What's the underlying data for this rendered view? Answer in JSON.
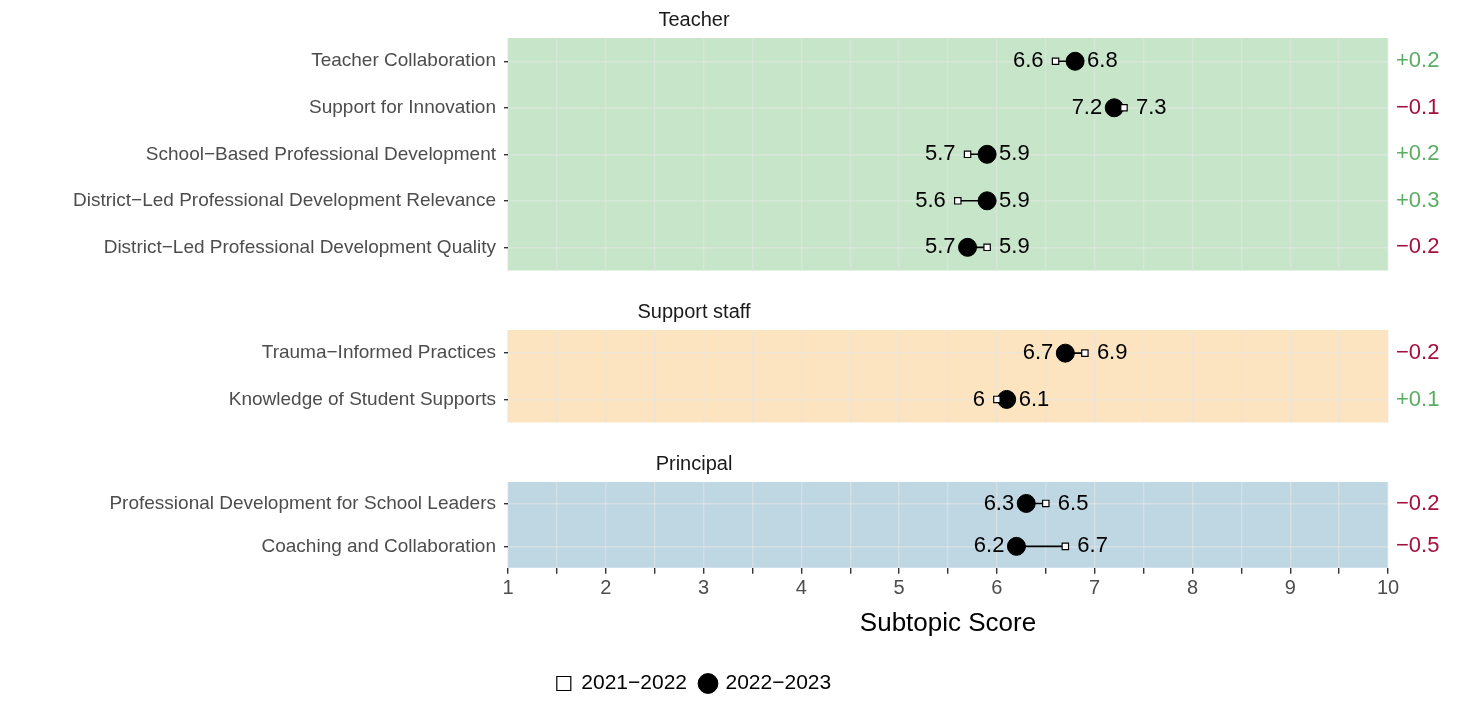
{
  "chart_data": [
    {
      "type": "scatter",
      "title": "Teacher",
      "orientation": "horizontal",
      "categories": [
        "Teacher Collaboration",
        "Support for Innovation",
        "School−Based Professional Development",
        "District−Led Professional Development Relevance",
        "District−Led Professional Development Quality"
      ],
      "series": [
        {
          "color": "#ffffff",
          "marker": "square",
          "values": [
            6.6,
            7.3,
            5.7,
            5.6,
            5.9
          ]
        },
        {
          "color": "#000000",
          "marker": "circle",
          "values": [
            6.8,
            7.2,
            5.9,
            5.9,
            5.7
          ]
        }
      ],
      "xlim": [
        1,
        10
      ],
      "xticks": [
        1,
        {
          "value": 1.5,
          "label": null
        },
        2,
        {
          "value": 2.5,
          "label": null
        },
        3,
        {
          "value": 3.5,
          "label": null
        },
        4,
        {
          "value": 4.5,
          "label": null
        },
        5,
        {
          "value": 5.5,
          "label": null
        },
        6,
        {
          "value": 6.5,
          "label": null
        },
        7,
        {
          "value": 7.5,
          "label": null
        },
        8,
        {
          "value": 8.5,
          "label": null
        },
        9,
        {
          "value": 9.5,
          "label": null
        },
        10
      ],
      "bands": [
        {
          "axis": "x",
          "from": 1,
          "to": 10,
          "color": "#c7e6c9"
        }
      ],
      "grid": true,
      "data_labels": true,
      "tick_labels": "y",
      "legend": false,
      "annotations": [
        "+0.2",
        "−0.1",
        "+0.2",
        "+0.3",
        "−0.2"
      ]
    },
    {
      "type": "scatter",
      "title": "Support staff",
      "orientation": "horizontal",
      "categories": [
        "Trauma−Informed Practices",
        "Knowledge of Student Supports"
      ],
      "series": [
        {
          "color": "#ffffff",
          "marker": "square",
          "values": [
            6.9,
            6
          ]
        },
        {
          "color": "#000000",
          "marker": "circle",
          "values": [
            6.7,
            6.1
          ]
        }
      ],
      "xlim": [
        1,
        10
      ],
      "xticks": [
        1,
        {
          "value": 1.5,
          "label": null
        },
        2,
        {
          "value": 2.5,
          "label": null
        },
        3,
        {
          "value": 3.5,
          "label": null
        },
        4,
        {
          "value": 4.5,
          "label": null
        },
        5,
        {
          "value": 5.5,
          "label": null
        },
        6,
        {
          "value": 6.5,
          "label": null
        },
        7,
        {
          "value": 7.5,
          "label": null
        },
        8,
        {
          "value": 8.5,
          "label": null
        },
        9,
        {
          "value": 9.5,
          "label": null
        },
        10
      ],
      "bands": [
        {
          "axis": "x",
          "from": 1,
          "to": 10,
          "color": "#fde4c1"
        }
      ],
      "grid": true,
      "data_labels": true,
      "tick_labels": "y",
      "legend": false,
      "annotations": [
        "−0.2",
        "+0.1"
      ]
    },
    {
      "type": "scatter",
      "title": "Principal",
      "orientation": "horizontal",
      "xlabel": "Subtopic Score",
      "categories": [
        "Professional Development for School Leaders",
        "Coaching and Collaboration"
      ],
      "series": [
        {
          "name": "2021−2022",
          "color": "#ffffff",
          "marker": "square",
          "values": [
            6.5,
            6.7
          ]
        },
        {
          "name": "2022−2023",
          "color": "#000000",
          "marker": "circle",
          "values": [
            6.3,
            6.2
          ]
        }
      ],
      "xlim": [
        1,
        10
      ],
      "xticks": [
        1,
        {
          "value": 1.5,
          "label": null
        },
        2,
        {
          "value": 2.5,
          "label": null
        },
        3,
        {
          "value": 3.5,
          "label": null
        },
        4,
        {
          "value": 4.5,
          "label": null
        },
        5,
        {
          "value": 5.5,
          "label": null
        },
        6,
        {
          "value": 6.5,
          "label": null
        },
        7,
        {
          "value": 7.5,
          "label": null
        },
        8,
        {
          "value": 8.5,
          "label": null
        },
        9,
        {
          "value": 9.5,
          "label": null
        },
        10
      ],
      "bands": [
        {
          "axis": "x",
          "from": 1,
          "to": 10,
          "color": "#bfd7e3"
        }
      ],
      "grid": true,
      "data_labels": true,
      "legend": "bottom",
      "annotations": [
        "−0.2",
        "−0.5"
      ]
    }
  ]
}
